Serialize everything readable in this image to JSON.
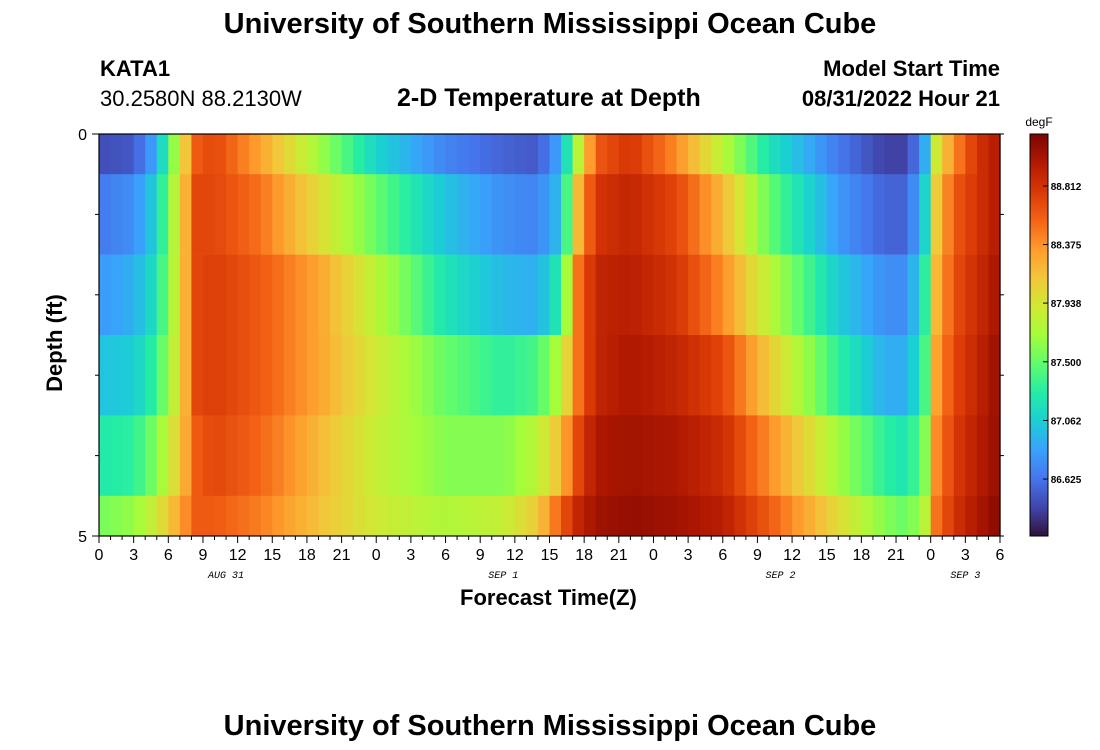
{
  "header": {
    "title": "University of Southern Mississippi Ocean Cube",
    "station": "KATA1",
    "coords": "30.2580N  88.2130W",
    "chart_title": "2-D Temperature at Depth",
    "model_label": "Model Start Time",
    "model_time": "08/31/2022 Hour 21"
  },
  "footer": {
    "title": "University of Southern Mississippi Ocean Cube"
  },
  "colors": {
    "background": "#ffffff",
    "axis": "#000000",
    "colormap": [
      "#30123b",
      "#4145ab",
      "#4675ed",
      "#39a2fc",
      "#1bcfd4",
      "#24eca6",
      "#61fc6c",
      "#a4fc3b",
      "#d1e834",
      "#f3c63a",
      "#fe9b2d",
      "#f36315",
      "#d93806",
      "#b11901",
      "#7a0402"
    ]
  },
  "chart_data": {
    "type": "heatmap",
    "title": "2-D Temperature at Depth",
    "xlabel": "Forecast Time(Z)",
    "ylabel": "Depth (ft)",
    "x_ticks": [
      "0",
      "3",
      "6",
      "9",
      "12",
      "15",
      "18",
      "21",
      "0",
      "3",
      "6",
      "9",
      "12",
      "15",
      "18",
      "21",
      "0",
      "3",
      "6",
      "9",
      "12",
      "15",
      "18",
      "21",
      "0",
      "3",
      "6"
    ],
    "x_hours_range": [
      0,
      78
    ],
    "date_labels": [
      {
        "hour": 11,
        "label": "AUG 31"
      },
      {
        "hour": 35,
        "label": "SEP 1"
      },
      {
        "hour": 59,
        "label": "SEP 2"
      },
      {
        "hour": 75,
        "label": "SEP 3"
      }
    ],
    "y_ticks": [
      "0",
      "5"
    ],
    "y_range": [
      0,
      5
    ],
    "depths_ft": [
      0,
      1,
      2,
      3,
      4,
      5
    ],
    "colorbar": {
      "units": "degF",
      "min": 86.2,
      "max": 89.2,
      "tick_values": [
        86.625,
        87.062,
        87.5,
        87.938,
        88.375,
        88.812
      ],
      "tick_labels": [
        "86.625",
        "87.062",
        "87.500",
        "87.938",
        "88.375",
        "88.812"
      ]
    },
    "time_keys_hours": [
      0,
      3,
      5,
      7,
      8.5,
      10,
      14,
      19,
      24,
      30,
      35,
      38,
      40,
      41.5,
      43,
      46,
      50,
      54,
      58,
      64,
      68,
      70,
      71.5,
      72.5,
      74,
      76,
      78
    ],
    "values": [
      [
        86.45,
        86.5,
        86.9,
        87.9,
        88.6,
        88.7,
        88.3,
        87.7,
        87.1,
        86.7,
        86.55,
        86.5,
        86.9,
        87.8,
        88.6,
        88.8,
        88.4,
        87.8,
        87.2,
        86.65,
        86.4,
        86.4,
        86.9,
        87.9,
        88.4,
        88.8,
        89.0
      ],
      [
        86.65,
        86.75,
        87.1,
        88.0,
        88.7,
        88.7,
        88.5,
        88.0,
        87.5,
        87.0,
        86.75,
        86.7,
        87.0,
        88.2,
        88.8,
        88.9,
        88.7,
        88.2,
        87.5,
        86.8,
        86.55,
        86.55,
        87.1,
        88.1,
        88.6,
        88.8,
        89.0
      ],
      [
        86.8,
        86.9,
        87.2,
        88.0,
        88.7,
        88.75,
        88.6,
        88.3,
        87.8,
        87.2,
        86.95,
        86.9,
        87.3,
        88.5,
        88.9,
        88.95,
        88.8,
        88.4,
        87.8,
        87.05,
        86.75,
        86.75,
        87.3,
        88.2,
        88.65,
        88.85,
        89.05
      ],
      [
        87.0,
        87.05,
        87.35,
        88.0,
        88.7,
        88.75,
        88.6,
        88.3,
        87.9,
        87.5,
        87.3,
        87.4,
        87.8,
        88.5,
        88.9,
        89.0,
        88.9,
        88.7,
        88.1,
        87.3,
        86.9,
        86.9,
        87.4,
        88.3,
        88.7,
        88.9,
        89.1
      ],
      [
        87.25,
        87.3,
        87.6,
        88.1,
        88.6,
        88.7,
        88.55,
        88.2,
        87.85,
        87.6,
        87.6,
        87.8,
        88.2,
        88.7,
        89.0,
        89.05,
        89.0,
        88.85,
        88.4,
        87.7,
        87.3,
        87.2,
        87.6,
        88.4,
        88.75,
        88.95,
        89.1
      ],
      [
        87.55,
        87.65,
        87.9,
        88.3,
        88.6,
        88.6,
        88.45,
        88.15,
        87.9,
        87.75,
        87.85,
        88.1,
        88.6,
        88.9,
        89.05,
        89.1,
        89.05,
        88.95,
        88.6,
        88.0,
        87.6,
        87.5,
        87.8,
        88.5,
        88.8,
        89.0,
        89.15
      ]
    ]
  }
}
